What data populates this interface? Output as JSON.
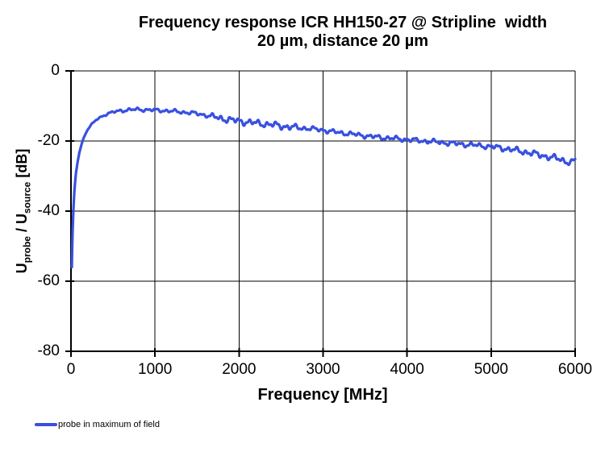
{
  "title": {
    "line1": "Frequency response ICR HH150-27 @ Stripline  width",
    "line2": "20 µm, distance 20 µm"
  },
  "y_axis": {
    "label_u1": "U",
    "label_sub1": "probe",
    "label_mid": " / U",
    "label_sub2": "source",
    "label_unit": " [dB]"
  },
  "x_axis": {
    "label": "Frequency [MHz]"
  },
  "legend": {
    "label": "probe in maximum of field"
  },
  "colors": {
    "line": "#3950e0",
    "grid": "#000000",
    "axis": "#000000",
    "background": "#ffffff"
  },
  "chart_data": {
    "type": "line",
    "title": "Frequency response ICR HH150-27 @ Stripline width 20 µm, distance 20 µm",
    "xlabel": "Frequency [MHz]",
    "ylabel": "Uprobe / Usource [dB]",
    "xlim": [
      0,
      6000
    ],
    "ylim": [
      -80,
      0
    ],
    "x_ticks": [
      0,
      1000,
      2000,
      3000,
      4000,
      5000,
      6000
    ],
    "y_ticks": [
      0,
      -20,
      -40,
      -60,
      -80
    ],
    "grid": true,
    "legend_position": "bottom-left",
    "series": [
      {
        "name": "probe in maximum of field",
        "color": "#3950e0",
        "points": [
          [
            10,
            -56
          ],
          [
            15,
            -50
          ],
          [
            20,
            -45.5
          ],
          [
            25,
            -42
          ],
          [
            30,
            -39
          ],
          [
            40,
            -34.5
          ],
          [
            50,
            -31.5
          ],
          [
            60,
            -29
          ],
          [
            80,
            -25.8
          ],
          [
            100,
            -23.3
          ],
          [
            125,
            -21
          ],
          [
            150,
            -19.2
          ],
          [
            175,
            -17.8
          ],
          [
            200,
            -16.7
          ],
          [
            250,
            -15.1
          ],
          [
            300,
            -14
          ],
          [
            350,
            -13.2
          ],
          [
            400,
            -12.6
          ],
          [
            450,
            -12.1
          ],
          [
            500,
            -11.8
          ],
          [
            550,
            -11.5
          ],
          [
            600,
            -11.3
          ],
          [
            650,
            -11.2
          ],
          [
            700,
            -11.1
          ],
          [
            800,
            -11
          ],
          [
            900,
            -11.1
          ],
          [
            1000,
            -11.2
          ],
          [
            1100,
            -11.3
          ],
          [
            1200,
            -11.5
          ],
          [
            1300,
            -11.7
          ],
          [
            1400,
            -11.9
          ],
          [
            1500,
            -12.2
          ],
          [
            1600,
            -12.6
          ],
          [
            1700,
            -13.1
          ],
          [
            1800,
            -13.6
          ],
          [
            1900,
            -14
          ],
          [
            2000,
            -14.3
          ],
          [
            2100,
            -14.6
          ],
          [
            2200,
            -14.9
          ],
          [
            2300,
            -15.1
          ],
          [
            2400,
            -15.4
          ],
          [
            2500,
            -15.7
          ],
          [
            2600,
            -16
          ],
          [
            2700,
            -16.2
          ],
          [
            2800,
            -16.4
          ],
          [
            2900,
            -16.6
          ],
          [
            3000,
            -16.9
          ],
          [
            3100,
            -17.3
          ],
          [
            3200,
            -17.6
          ],
          [
            3300,
            -17.9
          ],
          [
            3400,
            -18.2
          ],
          [
            3500,
            -18.5
          ],
          [
            3600,
            -18.8
          ],
          [
            3700,
            -19
          ],
          [
            3800,
            -19.2
          ],
          [
            3900,
            -19.4
          ],
          [
            4000,
            -19.6
          ],
          [
            4100,
            -19.8
          ],
          [
            4200,
            -20
          ],
          [
            4300,
            -20.2
          ],
          [
            4400,
            -20.4
          ],
          [
            4500,
            -20.6
          ],
          [
            4600,
            -20.8
          ],
          [
            4700,
            -21
          ],
          [
            4800,
            -21.2
          ],
          [
            4900,
            -21.4
          ],
          [
            5000,
            -21.6
          ],
          [
            5100,
            -21.9
          ],
          [
            5200,
            -22.3
          ],
          [
            5300,
            -22.7
          ],
          [
            5400,
            -23.1
          ],
          [
            5500,
            -23.6
          ],
          [
            5600,
            -24.1
          ],
          [
            5700,
            -24.6
          ],
          [
            5800,
            -25.1
          ],
          [
            5900,
            -25.8
          ],
          [
            5950,
            -26.2
          ],
          [
            6000,
            -25.6
          ]
        ]
      }
    ],
    "ripple": {
      "amplitude_envelope": [
        [
          0,
          0
        ],
        [
          300,
          0.1
        ],
        [
          600,
          0.3
        ],
        [
          1600,
          0.35
        ],
        [
          1750,
          0.6
        ],
        [
          2600,
          0.6
        ],
        [
          2800,
          0.4
        ],
        [
          5000,
          0.45
        ],
        [
          5200,
          0.55
        ],
        [
          6000,
          0.6
        ]
      ],
      "components": [
        [
          0.9,
          17.5,
          0
        ],
        [
          0.5,
          7.9,
          2.1
        ],
        [
          0.6,
          38,
          0.7
        ]
      ]
    }
  }
}
